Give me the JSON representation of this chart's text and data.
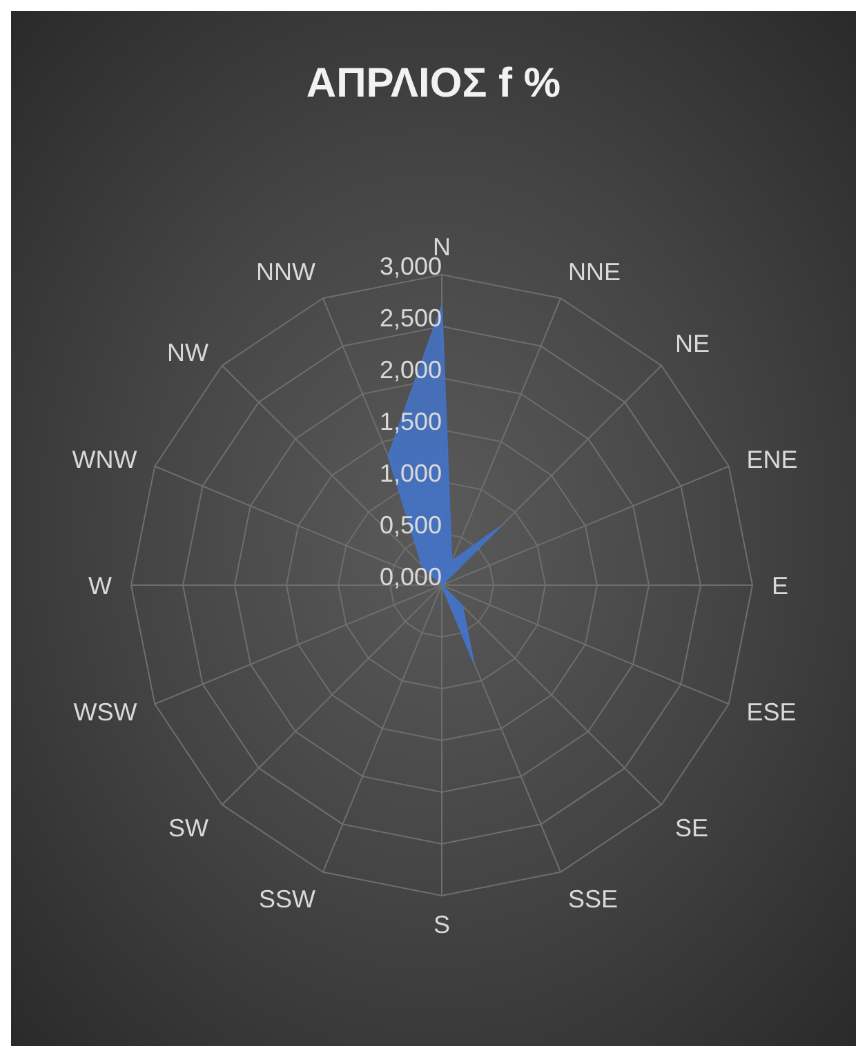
{
  "chart_data": {
    "type": "radar",
    "title": "ΑΠΡΛΙΟΣ f %",
    "categories": [
      "N",
      "NNE",
      "NE",
      "ENE",
      "E",
      "ESE",
      "SE",
      "SSE",
      "S",
      "SSW",
      "SW",
      "WSW",
      "W",
      "WNW",
      "NW",
      "NNW"
    ],
    "series": [
      {
        "color": "#4472c4",
        "values": [
          2.7,
          0.25,
          0.8,
          0,
          0,
          0,
          0.28,
          0.8,
          0,
          0,
          0,
          0,
          0,
          0,
          0.27,
          1.35
        ]
      }
    ],
    "ylim": [
      0,
      3
    ],
    "yticks": [
      {
        "value": 0,
        "label": "0,000"
      },
      {
        "value": 0.5,
        "label": "0,500"
      },
      {
        "value": 1,
        "label": "1,000"
      },
      {
        "value": 1.5,
        "label": "1,500"
      },
      {
        "value": 2,
        "label": "2,000"
      },
      {
        "value": 2.5,
        "label": "2,500"
      },
      {
        "value": 3,
        "label": "3,000"
      }
    ],
    "grid": true
  }
}
